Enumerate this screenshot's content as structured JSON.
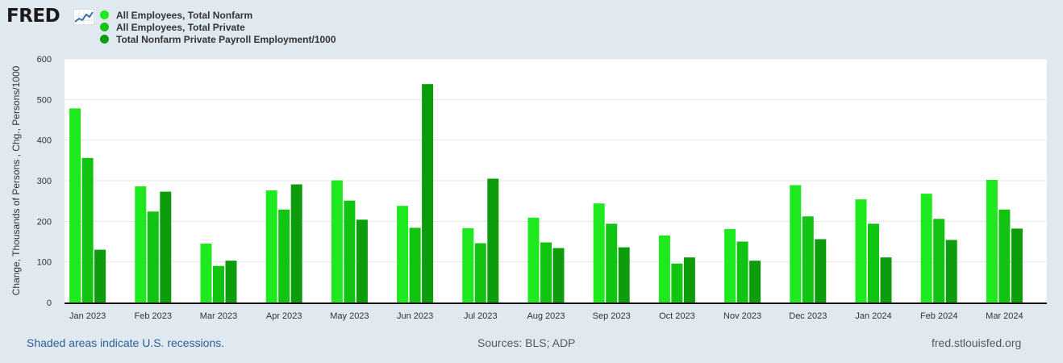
{
  "header": {
    "logo_text": "FRED",
    "logo_icon": "line-chart-icon"
  },
  "footer": {
    "recession_note": "Shaded areas indicate U.S. recessions.",
    "sources": "Sources: BLS; ADP",
    "site": "fred.stlouisfed.org"
  },
  "colors": {
    "background": "#e1e9f0",
    "plot_bg": "#ffffff",
    "grid": "#e6e6e6",
    "series1": "#1ee81e",
    "series2": "#12c412",
    "series3": "#0c9c0c",
    "footer_link": "#2c5f9a",
    "footer_text": "#595959"
  },
  "chart_data": {
    "type": "bar",
    "title": "",
    "xlabel": "",
    "ylabel": "Change, Thousands of Persons , Chg., Persons/1000",
    "ylim": [
      0,
      600
    ],
    "yticks": [
      0,
      100,
      200,
      300,
      400,
      500,
      600
    ],
    "grid": true,
    "legend_position": "top-left",
    "categories": [
      "Jan 2023",
      "Feb 2023",
      "Mar 2023",
      "Apr 2023",
      "May 2023",
      "Jun 2023",
      "Jul 2023",
      "Aug 2023",
      "Sep 2023",
      "Oct 2023",
      "Nov 2023",
      "Dec 2023",
      "Jan 2024",
      "Feb 2024",
      "Mar 2024"
    ],
    "series": [
      {
        "name": "All Employees, Total Nonfarm",
        "color": "#1ee81e",
        "values": [
          478,
          286,
          145,
          276,
          301,
          238,
          183,
          209,
          244,
          165,
          181,
          289,
          254,
          268,
          302
        ]
      },
      {
        "name": "All Employees, Total Private",
        "color": "#12c412",
        "values": [
          356,
          224,
          90,
          229,
          251,
          184,
          146,
          148,
          194,
          96,
          150,
          212,
          194,
          206,
          229
        ]
      },
      {
        "name": "Total Nonfarm Private Payroll Employment/1000",
        "color": "#0c9c0c",
        "values": [
          130,
          273,
          103,
          291,
          204,
          538,
          305,
          134,
          136,
          111,
          103,
          156,
          111,
          154,
          182
        ]
      }
    ]
  }
}
